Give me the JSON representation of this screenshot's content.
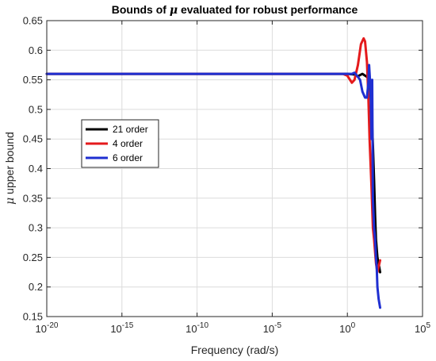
{
  "chart_data": {
    "type": "line",
    "title_before": "Bounds of ",
    "title_symbol": "μ",
    "title_after": " evaluated for robust performance",
    "xlabel": "Frequency (rad/s)",
    "ylabel_symbol": "μ",
    "ylabel_text": " upper bound",
    "x_scale": "log",
    "xlim": [
      1e-20,
      100000.0
    ],
    "ylim": [
      0.15,
      0.65
    ],
    "grid": true,
    "legend_position": "left, middle",
    "x_ticks": [
      {
        "base": "10",
        "exp": "-20",
        "value": -20
      },
      {
        "base": "10",
        "exp": "-15",
        "value": -15
      },
      {
        "base": "10",
        "exp": "-10",
        "value": -10
      },
      {
        "base": "10",
        "exp": "-5",
        "value": -5
      },
      {
        "base": "10",
        "exp": "0",
        "value": 0
      },
      {
        "base": "10",
        "exp": "5",
        "value": 5
      }
    ],
    "y_ticks": [
      "0.15",
      "0.2",
      "0.25",
      "0.3",
      "0.35",
      "0.4",
      "0.45",
      "0.5",
      "0.55",
      "0.6",
      "0.65"
    ],
    "series": [
      {
        "name": "21 order",
        "color": "#000000",
        "x": [
          1e-20,
          1e-10,
          0.1,
          1,
          3,
          5,
          10,
          20,
          30,
          40,
          50,
          60,
          70,
          80,
          100,
          120,
          150
        ],
        "y": [
          0.56,
          0.56,
          0.56,
          0.56,
          0.559,
          0.556,
          0.56,
          0.555,
          0.552,
          0.5,
          0.44,
          0.38,
          0.32,
          0.28,
          0.25,
          0.24,
          0.225
        ]
      },
      {
        "name": "4 order",
        "color": "#e41a1c",
        "x": [
          1e-20,
          1e-10,
          0.1,
          0.5,
          1,
          1.5,
          2,
          3,
          5,
          8,
          12,
          15,
          20,
          25,
          30,
          40,
          50,
          60,
          80,
          100,
          150
        ],
        "y": [
          0.56,
          0.56,
          0.56,
          0.56,
          0.557,
          0.55,
          0.545,
          0.55,
          0.575,
          0.61,
          0.62,
          0.615,
          0.58,
          0.52,
          0.45,
          0.37,
          0.3,
          0.28,
          0.24,
          0.225,
          0.245
        ]
      },
      {
        "name": "6 order",
        "color": "#1f2fd1",
        "x": [
          1e-20,
          1e-10,
          0.1,
          0.5,
          1,
          2,
          3,
          5,
          7,
          10,
          15,
          20,
          25,
          28,
          32,
          36,
          40,
          45,
          50,
          60,
          70,
          80,
          90,
          100,
          120,
          150
        ],
        "y": [
          0.56,
          0.56,
          0.56,
          0.56,
          0.56,
          0.56,
          0.562,
          0.555,
          0.55,
          0.53,
          0.52,
          0.52,
          0.545,
          0.575,
          0.55,
          0.52,
          0.45,
          0.55,
          0.35,
          0.3,
          0.28,
          0.25,
          0.23,
          0.2,
          0.18,
          0.165
        ]
      }
    ]
  }
}
